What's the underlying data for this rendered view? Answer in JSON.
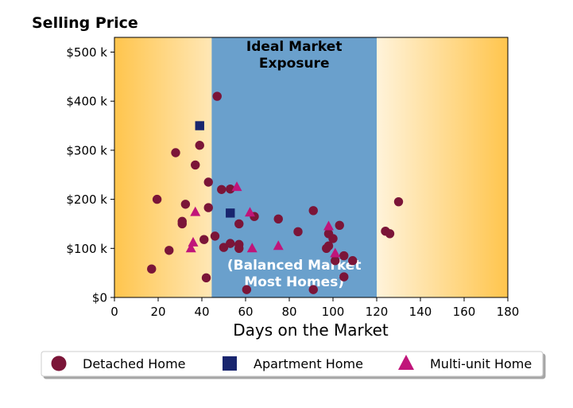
{
  "chart_data": {
    "type": "scatter",
    "ylabel": "Selling Price",
    "xlabel": "Days on the Market",
    "xlim": [
      0,
      180
    ],
    "ylim": [
      0,
      530000
    ],
    "x_ticks": [
      0,
      20,
      40,
      60,
      80,
      100,
      120,
      140,
      160,
      180
    ],
    "x_tick_labels": [
      "0",
      "20",
      "40",
      "60",
      "80",
      "100",
      "120",
      "140",
      "160",
      "180"
    ],
    "y_ticks": [
      0,
      100000,
      200000,
      300000,
      400000,
      500000
    ],
    "y_tick_labels": [
      "$0",
      "$100 k",
      "$200 k",
      "$300 k",
      "$400 k",
      "$500 k"
    ],
    "grid": false,
    "background_gradient": {
      "edge_color": "#ffc54d",
      "center_color": "#ffffff"
    },
    "highlight_region": {
      "x_range": [
        44.5,
        120
      ],
      "color": "#6aa0cc",
      "top_label": "Ideal Market\nExposure",
      "bottom_label": "(Balanced Market\nMost Homes)"
    },
    "legend": {
      "placement": "bottom-center",
      "columns": 3
    },
    "series": [
      {
        "name": "Detached Home",
        "marker": "circle",
        "color": "#7b1538",
        "points": [
          [
            17,
            58000
          ],
          [
            19.5,
            200000
          ],
          [
            25,
            96000
          ],
          [
            28,
            295000
          ],
          [
            31,
            155000
          ],
          [
            31,
            150000
          ],
          [
            32.5,
            190000
          ],
          [
            37,
            270000
          ],
          [
            39,
            310000
          ],
          [
            41,
            118000
          ],
          [
            42,
            40000
          ],
          [
            43,
            235000
          ],
          [
            43,
            183000
          ],
          [
            46,
            125000
          ],
          [
            47,
            410000
          ],
          [
            49,
            220000
          ],
          [
            50,
            102000
          ],
          [
            53,
            110000
          ],
          [
            53,
            221000
          ],
          [
            57,
            150000
          ],
          [
            57,
            108000
          ],
          [
            57,
            100000
          ],
          [
            60.5,
            16000
          ],
          [
            64,
            165000
          ],
          [
            75,
            160000
          ],
          [
            84,
            134000
          ],
          [
            91,
            177000
          ],
          [
            91,
            16000
          ],
          [
            97,
            100000
          ],
          [
            98,
            105000
          ],
          [
            98,
            130000
          ],
          [
            100,
            120000
          ],
          [
            101,
            75000
          ],
          [
            103,
            147000
          ],
          [
            105,
            42000
          ],
          [
            105,
            85000
          ],
          [
            109,
            75000
          ],
          [
            124,
            135000
          ],
          [
            126,
            130000
          ],
          [
            130,
            195000
          ]
        ]
      },
      {
        "name": "Apartment Home",
        "marker": "square",
        "color": "#18256e",
        "points": [
          [
            39,
            350000
          ],
          [
            53,
            172000
          ]
        ]
      },
      {
        "name": "Multi-unit Home",
        "marker": "triangle",
        "color": "#c0157a",
        "points": [
          [
            35,
            100000
          ],
          [
            36,
            112000
          ],
          [
            37,
            174000
          ],
          [
            56,
            225000
          ],
          [
            62,
            173000
          ],
          [
            63,
            100000
          ],
          [
            75,
            105000
          ],
          [
            98,
            145000
          ],
          [
            101,
            90000
          ]
        ]
      }
    ]
  }
}
